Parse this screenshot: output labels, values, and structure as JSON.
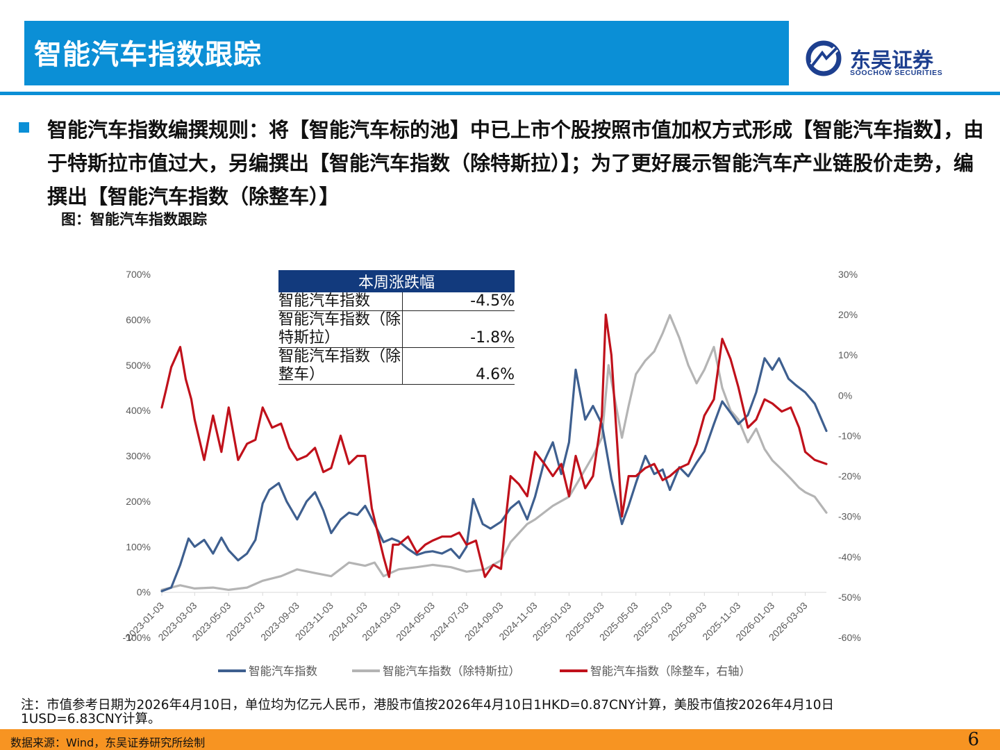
{
  "header": {
    "title": "智能汽车指数跟踪"
  },
  "logo": {
    "name": "东吴证券",
    "name_en": "SOOCHOW SECURITIES",
    "color": "#1d3f8f"
  },
  "bullet": "智能汽车指数编撰规则：将【智能汽车标的池】中已上市个股按照市值加权方式形成【智能汽车指数】，由于特斯拉市值过大，另编撰出【智能汽车指数（除特斯拉）】；为了更好展示智能汽车产业链股价走势，编撰出【智能汽车指数（除整车）】",
  "figure_title": "图：智能汽车指数跟踪",
  "weekly_table": {
    "header": "本周涨跌幅",
    "rows": [
      {
        "name": "智能汽车指数",
        "value": "-4.5%"
      },
      {
        "name": "智能汽车指数（除特斯拉）",
        "value": "-1.8%"
      },
      {
        "name": "智能汽车指数（除整车）",
        "value": "4.6%"
      }
    ]
  },
  "chart_data": {
    "type": "line",
    "x_ticks": [
      "2023-01-03",
      "2023-03-03",
      "2023-05-03",
      "2023-07-03",
      "2023-09-03",
      "2023-11-03",
      "2024-01-03",
      "2024-03-03",
      "2024-05-03",
      "2024-07-03",
      "2024-09-03",
      "2024-11-03",
      "2025-01-03",
      "2025-03-03",
      "2025-05-03",
      "2025-07-03",
      "2025-09-03",
      "2025-11-03",
      "2026-01-03",
      "2026-03-03"
    ],
    "x_range": [
      "2023-01-03",
      "2026-04-10"
    ],
    "y_left": {
      "ticks": [
        "-100%",
        "0%",
        "100%",
        "200%",
        "300%",
        "400%",
        "500%",
        "600%",
        "700%"
      ],
      "range": [
        -100,
        700
      ]
    },
    "y_right": {
      "ticks": [
        "-60%",
        "-50%",
        "-40%",
        "-30%",
        "-20%",
        "-10%",
        "0%",
        "10%",
        "20%",
        "30%"
      ],
      "range": [
        -60,
        30
      ]
    },
    "legend_position": "bottom",
    "grid": false,
    "series": [
      {
        "name": "智能汽车指数",
        "axis": "left",
        "color": "#3e5f8f",
        "points": [
          [
            "2023-01-03",
            2
          ],
          [
            "2023-01-20",
            10
          ],
          [
            "2023-02-05",
            60
          ],
          [
            "2023-02-20",
            118
          ],
          [
            "2023-03-03",
            100
          ],
          [
            "2023-03-20",
            115
          ],
          [
            "2023-04-05",
            85
          ],
          [
            "2023-04-20",
            120
          ],
          [
            "2023-05-03",
            92
          ],
          [
            "2023-05-20",
            70
          ],
          [
            "2023-06-05",
            85
          ],
          [
            "2023-06-20",
            115
          ],
          [
            "2023-07-03",
            195
          ],
          [
            "2023-07-15",
            225
          ],
          [
            "2023-08-01",
            240
          ],
          [
            "2023-08-15",
            200
          ],
          [
            "2023-09-03",
            160
          ],
          [
            "2023-09-20",
            200
          ],
          [
            "2023-10-05",
            220
          ],
          [
            "2023-10-20",
            180
          ],
          [
            "2023-11-03",
            130
          ],
          [
            "2023-11-20",
            160
          ],
          [
            "2023-12-05",
            175
          ],
          [
            "2023-12-20",
            170
          ],
          [
            "2024-01-03",
            190
          ],
          [
            "2024-01-20",
            150
          ],
          [
            "2024-02-05",
            110
          ],
          [
            "2024-02-20",
            118
          ],
          [
            "2024-03-03",
            112
          ],
          [
            "2024-03-20",
            95
          ],
          [
            "2024-04-05",
            82
          ],
          [
            "2024-04-20",
            88
          ],
          [
            "2024-05-03",
            90
          ],
          [
            "2024-05-20",
            85
          ],
          [
            "2024-06-05",
            95
          ],
          [
            "2024-06-20",
            75
          ],
          [
            "2024-07-03",
            100
          ],
          [
            "2024-07-15",
            205
          ],
          [
            "2024-08-01",
            150
          ],
          [
            "2024-08-15",
            140
          ],
          [
            "2024-09-03",
            155
          ],
          [
            "2024-09-20",
            185
          ],
          [
            "2024-10-05",
            200
          ],
          [
            "2024-10-20",
            160
          ],
          [
            "2024-11-03",
            210
          ],
          [
            "2024-11-20",
            290
          ],
          [
            "2024-12-05",
            330
          ],
          [
            "2024-12-20",
            260
          ],
          [
            "2025-01-03",
            330
          ],
          [
            "2025-01-15",
            490
          ],
          [
            "2025-02-01",
            380
          ],
          [
            "2025-02-15",
            410
          ],
          [
            "2025-03-03",
            370
          ],
          [
            "2025-03-20",
            250
          ],
          [
            "2025-04-08",
            150
          ],
          [
            "2025-04-20",
            190
          ],
          [
            "2025-05-03",
            240
          ],
          [
            "2025-05-20",
            300
          ],
          [
            "2025-06-05",
            260
          ],
          [
            "2025-06-20",
            270
          ],
          [
            "2025-07-03",
            225
          ],
          [
            "2025-07-20",
            275
          ],
          [
            "2025-08-05",
            255
          ],
          [
            "2025-08-20",
            285
          ],
          [
            "2025-09-03",
            310
          ],
          [
            "2025-09-20",
            370
          ],
          [
            "2025-10-05",
            420
          ],
          [
            "2025-10-20",
            395
          ],
          [
            "2025-11-03",
            370
          ],
          [
            "2025-11-20",
            390
          ],
          [
            "2025-12-05",
            440
          ],
          [
            "2025-12-20",
            515
          ],
          [
            "2026-01-03",
            490
          ],
          [
            "2026-01-15",
            515
          ],
          [
            "2026-02-01",
            470
          ],
          [
            "2026-02-15",
            455
          ],
          [
            "2026-03-03",
            440
          ],
          [
            "2026-03-20",
            415
          ],
          [
            "2026-04-10",
            355
          ]
        ]
      },
      {
        "name": "智能汽车指数（除特斯拉）",
        "axis": "left",
        "color": "#b4b4b4",
        "points": [
          [
            "2023-01-03",
            5
          ],
          [
            "2023-02-05",
            15
          ],
          [
            "2023-03-03",
            8
          ],
          [
            "2023-04-05",
            10
          ],
          [
            "2023-05-03",
            5
          ],
          [
            "2023-06-05",
            10
          ],
          [
            "2023-07-03",
            25
          ],
          [
            "2023-08-05",
            35
          ],
          [
            "2023-09-03",
            50
          ],
          [
            "2023-10-05",
            42
          ],
          [
            "2023-11-03",
            35
          ],
          [
            "2023-12-05",
            65
          ],
          [
            "2024-01-03",
            58
          ],
          [
            "2024-01-20",
            65
          ],
          [
            "2024-02-05",
            35
          ],
          [
            "2024-03-03",
            50
          ],
          [
            "2024-04-05",
            55
          ],
          [
            "2024-05-03",
            60
          ],
          [
            "2024-06-05",
            55
          ],
          [
            "2024-07-03",
            45
          ],
          [
            "2024-08-05",
            50
          ],
          [
            "2024-09-03",
            70
          ],
          [
            "2024-09-20",
            110
          ],
          [
            "2024-10-20",
            150
          ],
          [
            "2024-11-03",
            160
          ],
          [
            "2024-12-05",
            190
          ],
          [
            "2025-01-03",
            210
          ],
          [
            "2025-01-20",
            245
          ],
          [
            "2025-02-15",
            300
          ],
          [
            "2025-03-03",
            340
          ],
          [
            "2025-03-15",
            500
          ],
          [
            "2025-04-08",
            340
          ],
          [
            "2025-04-20",
            410
          ],
          [
            "2025-05-03",
            480
          ],
          [
            "2025-05-20",
            510
          ],
          [
            "2025-06-05",
            530
          ],
          [
            "2025-06-20",
            570
          ],
          [
            "2025-07-03",
            610
          ],
          [
            "2025-07-20",
            560
          ],
          [
            "2025-08-05",
            500
          ],
          [
            "2025-08-20",
            460
          ],
          [
            "2025-09-03",
            490
          ],
          [
            "2025-09-20",
            540
          ],
          [
            "2025-10-05",
            450
          ],
          [
            "2025-10-20",
            400
          ],
          [
            "2025-11-03",
            380
          ],
          [
            "2025-11-20",
            330
          ],
          [
            "2025-12-05",
            360
          ],
          [
            "2025-12-20",
            315
          ],
          [
            "2026-01-03",
            290
          ],
          [
            "2026-01-20",
            270
          ],
          [
            "2026-02-05",
            250
          ],
          [
            "2026-02-20",
            230
          ],
          [
            "2026-03-03",
            220
          ],
          [
            "2026-03-20",
            210
          ],
          [
            "2026-04-10",
            175
          ]
        ]
      },
      {
        "name": "智能汽车指数（除整车，右轴）",
        "axis": "right",
        "color": "#c0111b",
        "points": [
          [
            "2023-01-03",
            -3
          ],
          [
            "2023-01-10",
            1
          ],
          [
            "2023-01-20",
            7
          ],
          [
            "2023-02-05",
            12
          ],
          [
            "2023-02-15",
            4
          ],
          [
            "2023-02-25",
            -1
          ],
          [
            "2023-03-03",
            -6
          ],
          [
            "2023-03-20",
            -16
          ],
          [
            "2023-04-05",
            -5
          ],
          [
            "2023-04-20",
            -14
          ],
          [
            "2023-05-03",
            -3
          ],
          [
            "2023-05-20",
            -16
          ],
          [
            "2023-06-05",
            -12
          ],
          [
            "2023-06-20",
            -11
          ],
          [
            "2023-07-03",
            -3
          ],
          [
            "2023-07-20",
            -8
          ],
          [
            "2023-08-05",
            -7
          ],
          [
            "2023-08-20",
            -13
          ],
          [
            "2023-09-03",
            -16
          ],
          [
            "2023-09-20",
            -15
          ],
          [
            "2023-10-05",
            -13
          ],
          [
            "2023-10-20",
            -19
          ],
          [
            "2023-11-03",
            -18
          ],
          [
            "2023-11-20",
            -10
          ],
          [
            "2023-12-05",
            -17
          ],
          [
            "2023-12-20",
            -15
          ],
          [
            "2024-01-03",
            -15
          ],
          [
            "2024-01-15",
            -28
          ],
          [
            "2024-02-05",
            -40
          ],
          [
            "2024-02-15",
            -45
          ],
          [
            "2024-02-22",
            -37
          ],
          [
            "2024-03-03",
            -37
          ],
          [
            "2024-03-20",
            -35
          ],
          [
            "2024-04-05",
            -39
          ],
          [
            "2024-04-20",
            -37
          ],
          [
            "2024-05-03",
            -36
          ],
          [
            "2024-05-20",
            -35
          ],
          [
            "2024-06-05",
            -35
          ],
          [
            "2024-06-20",
            -34
          ],
          [
            "2024-07-03",
            -37
          ],
          [
            "2024-07-20",
            -36
          ],
          [
            "2024-08-05",
            -45
          ],
          [
            "2024-08-20",
            -42
          ],
          [
            "2024-09-03",
            -43
          ],
          [
            "2024-09-12",
            -30
          ],
          [
            "2024-09-20",
            -20
          ],
          [
            "2024-10-05",
            -22
          ],
          [
            "2024-10-20",
            -25
          ],
          [
            "2024-11-03",
            -14
          ],
          [
            "2024-11-20",
            -17
          ],
          [
            "2024-12-05",
            -20
          ],
          [
            "2024-12-20",
            -17
          ],
          [
            "2025-01-03",
            -25
          ],
          [
            "2025-01-15",
            -15
          ],
          [
            "2025-02-01",
            -23
          ],
          [
            "2025-02-15",
            -20
          ],
          [
            "2025-03-03",
            -5
          ],
          [
            "2025-03-10",
            20
          ],
          [
            "2025-03-20",
            10
          ],
          [
            "2025-04-08",
            -30
          ],
          [
            "2025-04-20",
            -20
          ],
          [
            "2025-05-03",
            -20
          ],
          [
            "2025-05-20",
            -18
          ],
          [
            "2025-06-05",
            -17
          ],
          [
            "2025-06-20",
            -21
          ],
          [
            "2025-07-03",
            -20
          ],
          [
            "2025-07-20",
            -18
          ],
          [
            "2025-08-05",
            -17
          ],
          [
            "2025-08-20",
            -12
          ],
          [
            "2025-09-03",
            -5
          ],
          [
            "2025-09-20",
            -1
          ],
          [
            "2025-10-05",
            14
          ],
          [
            "2025-10-20",
            9
          ],
          [
            "2025-11-03",
            2
          ],
          [
            "2025-11-20",
            -8
          ],
          [
            "2025-12-05",
            -6
          ],
          [
            "2025-12-20",
            -1
          ],
          [
            "2026-01-03",
            -2
          ],
          [
            "2026-01-20",
            -4
          ],
          [
            "2026-02-05",
            -3
          ],
          [
            "2026-02-20",
            -8
          ],
          [
            "2026-03-03",
            -14
          ],
          [
            "2026-03-20",
            -16
          ],
          [
            "2026-04-10",
            -17
          ]
        ]
      }
    ]
  },
  "note": "注：市值参考日期为2026年4月10日，单位均为亿元人民币，港股市值按2026年4月10日1HKD=0.87CNY计算，美股市值按2026年4月10日1USD=6.83CNY计算。",
  "footer": {
    "source": "数据来源：Wind，东吴证券研究所绘制",
    "page": "6"
  },
  "colors": {
    "brand_blue": "#0b8fd6",
    "footer_orange": "#f79422",
    "table_header": "#123a7d"
  }
}
